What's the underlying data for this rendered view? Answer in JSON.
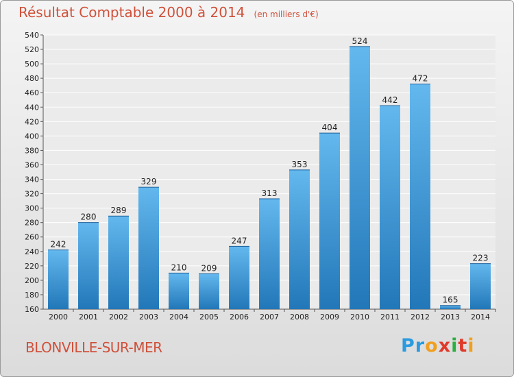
{
  "title": "Résultat Comptable 2000 à 2014",
  "subtitle": "(en milliers d'€)",
  "commune": "BLONVILLE-SUR-MER",
  "logo": {
    "text": "Proxiti",
    "colors": [
      "#2a9be0",
      "#2a9be0",
      "#f0a020",
      "#e03a2a",
      "#2ab040",
      "#e03a2a",
      "#f0a020"
    ]
  },
  "colors": {
    "bar_top": "#63b8ee",
    "bar_bottom": "#2277b8",
    "title": "#d0503a"
  },
  "chart_data": {
    "type": "bar",
    "categories": [
      "2000",
      "2001",
      "2002",
      "2003",
      "2004",
      "2005",
      "2006",
      "2007",
      "2008",
      "2009",
      "2010",
      "2011",
      "2012",
      "2013",
      "2014"
    ],
    "values": [
      242,
      280,
      289,
      329,
      210,
      209,
      247,
      313,
      353,
      404,
      524,
      442,
      472,
      165,
      223
    ],
    "title": "Résultat Comptable 2000 à 2014",
    "ylim": [
      160,
      540
    ],
    "yticks": [
      160,
      180,
      200,
      220,
      240,
      260,
      280,
      300,
      320,
      340,
      360,
      380,
      400,
      420,
      440,
      460,
      480,
      500,
      520,
      540
    ],
    "grid": true
  }
}
